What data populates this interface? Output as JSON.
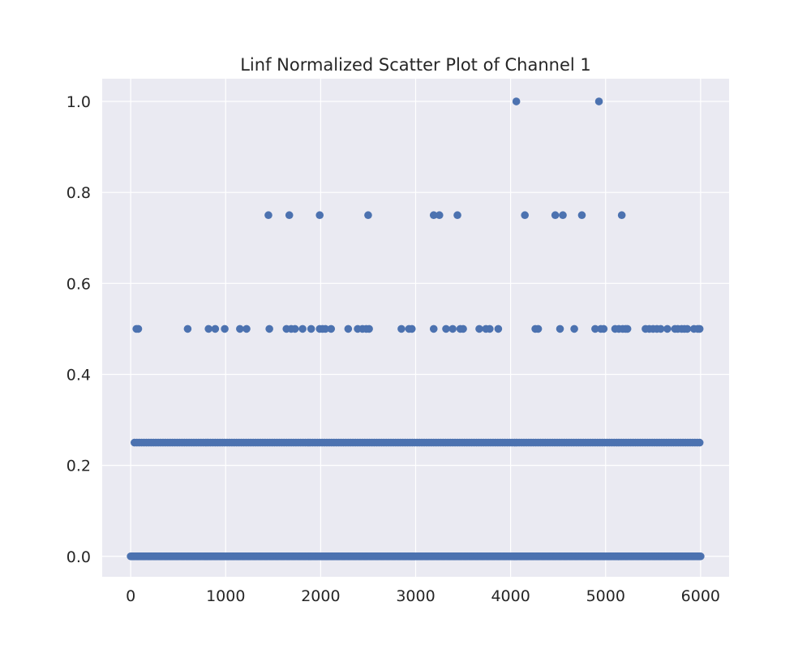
{
  "chart_data": {
    "type": "scatter",
    "title": "Linf Normalized Scatter Plot of Channel 1",
    "xlabel": "",
    "ylabel": "",
    "xlim": [
      -300,
      6300
    ],
    "ylim": [
      -0.045,
      1.05
    ],
    "xticks": [
      0,
      1000,
      2000,
      3000,
      4000,
      5000,
      6000
    ],
    "xtick_labels": [
      "0",
      "1000",
      "2000",
      "3000",
      "4000",
      "5000",
      "6000"
    ],
    "yticks": [
      0.0,
      0.2,
      0.4,
      0.6,
      0.8,
      1.0
    ],
    "ytick_labels": [
      "0.0",
      "0.2",
      "0.4",
      "0.6",
      "0.8",
      "1.0"
    ],
    "grid": true,
    "colors": {
      "background": "#eaeaf2",
      "grid": "#ffffff",
      "marker": "#4c72b0"
    },
    "series": [
      {
        "name": "",
        "levels": [
          {
            "y": 0.0,
            "x_range": [
              0,
              6000
            ],
            "description_level": "dense"
          },
          {
            "y": 0.25,
            "x_range": [
              40,
              6000
            ],
            "description_level": "dense"
          }
        ],
        "points": [
          {
            "x": 60,
            "y": 0.5
          },
          {
            "x": 80,
            "y": 0.5
          },
          {
            "x": 600,
            "y": 0.5
          },
          {
            "x": 820,
            "y": 0.5
          },
          {
            "x": 890,
            "y": 0.5
          },
          {
            "x": 990,
            "y": 0.5
          },
          {
            "x": 1150,
            "y": 0.5
          },
          {
            "x": 1220,
            "y": 0.5
          },
          {
            "x": 1460,
            "y": 0.5
          },
          {
            "x": 1640,
            "y": 0.5
          },
          {
            "x": 1690,
            "y": 0.5
          },
          {
            "x": 1730,
            "y": 0.5
          },
          {
            "x": 1810,
            "y": 0.5
          },
          {
            "x": 1900,
            "y": 0.5
          },
          {
            "x": 1990,
            "y": 0.5
          },
          {
            "x": 2020,
            "y": 0.5
          },
          {
            "x": 2050,
            "y": 0.5
          },
          {
            "x": 2110,
            "y": 0.5
          },
          {
            "x": 2290,
            "y": 0.5
          },
          {
            "x": 2390,
            "y": 0.5
          },
          {
            "x": 2440,
            "y": 0.5
          },
          {
            "x": 2480,
            "y": 0.5
          },
          {
            "x": 2510,
            "y": 0.5
          },
          {
            "x": 2850,
            "y": 0.5
          },
          {
            "x": 2930,
            "y": 0.5
          },
          {
            "x": 2960,
            "y": 0.5
          },
          {
            "x": 3190,
            "y": 0.5
          },
          {
            "x": 3320,
            "y": 0.5
          },
          {
            "x": 3390,
            "y": 0.5
          },
          {
            "x": 3470,
            "y": 0.5
          },
          {
            "x": 3500,
            "y": 0.5
          },
          {
            "x": 3670,
            "y": 0.5
          },
          {
            "x": 3740,
            "y": 0.5
          },
          {
            "x": 3780,
            "y": 0.5
          },
          {
            "x": 3870,
            "y": 0.5
          },
          {
            "x": 4260,
            "y": 0.5
          },
          {
            "x": 4290,
            "y": 0.5
          },
          {
            "x": 4520,
            "y": 0.5
          },
          {
            "x": 4670,
            "y": 0.5
          },
          {
            "x": 4890,
            "y": 0.5
          },
          {
            "x": 4950,
            "y": 0.5
          },
          {
            "x": 4980,
            "y": 0.5
          },
          {
            "x": 5100,
            "y": 0.5
          },
          {
            "x": 5140,
            "y": 0.5
          },
          {
            "x": 5180,
            "y": 0.5
          },
          {
            "x": 5210,
            "y": 0.5
          },
          {
            "x": 5230,
            "y": 0.5
          },
          {
            "x": 5420,
            "y": 0.5
          },
          {
            "x": 5460,
            "y": 0.5
          },
          {
            "x": 5500,
            "y": 0.5
          },
          {
            "x": 5540,
            "y": 0.5
          },
          {
            "x": 5580,
            "y": 0.5
          },
          {
            "x": 5650,
            "y": 0.5
          },
          {
            "x": 5730,
            "y": 0.5
          },
          {
            "x": 5760,
            "y": 0.5
          },
          {
            "x": 5800,
            "y": 0.5
          },
          {
            "x": 5830,
            "y": 0.5
          },
          {
            "x": 5860,
            "y": 0.5
          },
          {
            "x": 5930,
            "y": 0.5
          },
          {
            "x": 5970,
            "y": 0.5
          },
          {
            "x": 5990,
            "y": 0.5
          },
          {
            "x": 1450,
            "y": 0.75
          },
          {
            "x": 1670,
            "y": 0.75
          },
          {
            "x": 1990,
            "y": 0.75
          },
          {
            "x": 2500,
            "y": 0.75
          },
          {
            "x": 3190,
            "y": 0.75
          },
          {
            "x": 3250,
            "y": 0.75
          },
          {
            "x": 3440,
            "y": 0.75
          },
          {
            "x": 4150,
            "y": 0.75
          },
          {
            "x": 4470,
            "y": 0.75
          },
          {
            "x": 4550,
            "y": 0.75
          },
          {
            "x": 4750,
            "y": 0.75
          },
          {
            "x": 5170,
            "y": 0.75
          },
          {
            "x": 4060,
            "y": 1.0
          },
          {
            "x": 4930,
            "y": 1.0
          }
        ]
      }
    ]
  }
}
